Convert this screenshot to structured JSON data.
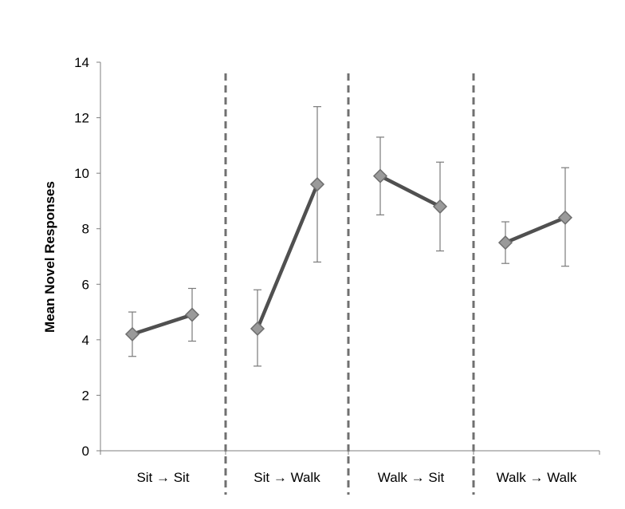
{
  "chart_data": {
    "type": "line",
    "ylabel": "Mean Novel Responses",
    "xlabel": "",
    "title": "",
    "ylim": [
      0,
      14
    ],
    "y_ticks": [
      0,
      2,
      4,
      6,
      8,
      10,
      12,
      14
    ],
    "grid": false,
    "legend": "none",
    "categories": [
      "Sit",
      "Sit",
      "Sit",
      "Walk",
      "Walk",
      "Sit",
      "Walk",
      "Walk"
    ],
    "panels": [
      {
        "label": "Sit → Sit",
        "x_labels": [
          "Sit",
          "Sit"
        ],
        "values": [
          4.2,
          4.9
        ],
        "error_low": [
          3.4,
          3.95
        ],
        "error_high": [
          5.0,
          5.85
        ]
      },
      {
        "label": "Sit → Walk",
        "x_labels": [
          "Sit",
          "Walk"
        ],
        "values": [
          4.4,
          9.6
        ],
        "error_low": [
          3.05,
          6.8
        ],
        "error_high": [
          5.8,
          12.4
        ]
      },
      {
        "label": "Walk → Sit",
        "x_labels": [
          "Walk",
          "Sit"
        ],
        "values": [
          9.9,
          8.8
        ],
        "error_low": [
          8.5,
          7.2
        ],
        "error_high": [
          11.3,
          10.4
        ]
      },
      {
        "label": "Walk → Walk",
        "x_labels": [
          "Walk",
          "Walk"
        ],
        "values": [
          7.5,
          8.4
        ],
        "error_low": [
          6.75,
          6.65
        ],
        "error_high": [
          8.25,
          10.2
        ]
      }
    ],
    "colors": {
      "line": "#505050",
      "marker_fill": "#9a9a9a",
      "marker_stroke": "#6e6e6e",
      "error_bar": "#7a7a7a",
      "divider": "#707070",
      "axis": "#7f7f7f"
    }
  }
}
